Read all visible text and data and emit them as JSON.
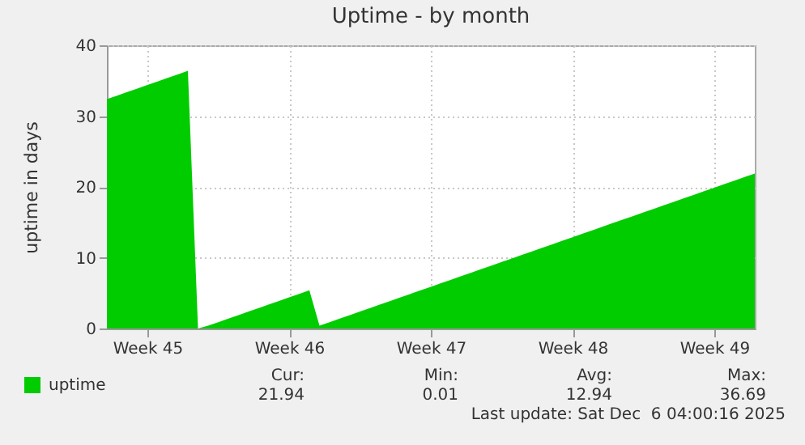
{
  "chart_data": {
    "type": "area",
    "title": "Uptime - by month",
    "ylabel": "uptime in days",
    "categories": [
      null,
      null,
      null,
      null,
      "Week 45",
      null,
      null,
      null,
      null,
      null,
      null,
      null,
      null,
      null,
      null,
      null,
      null,
      null,
      "Week 46",
      null,
      null,
      null,
      null,
      null,
      null,
      null,
      null,
      null,
      null,
      null,
      null,
      null,
      "Week 47",
      null,
      null,
      null,
      null,
      null,
      null,
      null,
      null,
      null,
      null,
      null,
      null,
      null,
      "Week 48",
      null,
      null,
      null,
      null,
      null,
      null,
      null,
      null,
      null,
      null,
      null,
      null,
      null,
      "Week 49",
      null,
      null,
      null,
      null
    ],
    "series": [
      {
        "name": "uptime",
        "color": "#00cc00",
        "values": [
          32.4,
          32.9,
          33.4,
          33.9,
          34.4,
          34.9,
          35.4,
          35.9,
          36.4,
          0,
          0.4,
          0.9,
          1.4,
          1.9,
          2.4,
          2.9,
          3.4,
          3.9,
          4.4,
          4.9,
          5.4,
          0.4,
          0.9,
          1.4,
          1.9,
          2.4,
          2.9,
          3.4,
          3.9,
          4.4,
          4.9,
          5.4,
          5.9,
          6.4,
          6.9,
          7.4,
          7.9,
          8.4,
          8.9,
          9.4,
          9.9,
          10.4,
          10.9,
          11.4,
          11.9,
          12.4,
          12.9,
          13.4,
          13.9,
          14.4,
          14.9,
          15.4,
          15.9,
          16.4,
          16.9,
          17.4,
          17.9,
          18.4,
          18.9,
          19.4,
          19.9,
          20.4,
          20.9,
          21.4,
          21.9
        ]
      }
    ],
    "ylim": [
      0,
      40
    ],
    "yticks": [
      0,
      10,
      20,
      30,
      40
    ],
    "grid": true,
    "legend": "bottom left",
    "annotations": [
      "Cur:",
      "21.94",
      "Min:",
      "0.01",
      "Avg:",
      "12.94",
      "Max:",
      "36.69",
      "Last update: Sat Dec  6 04:00:16 2025"
    ]
  }
}
